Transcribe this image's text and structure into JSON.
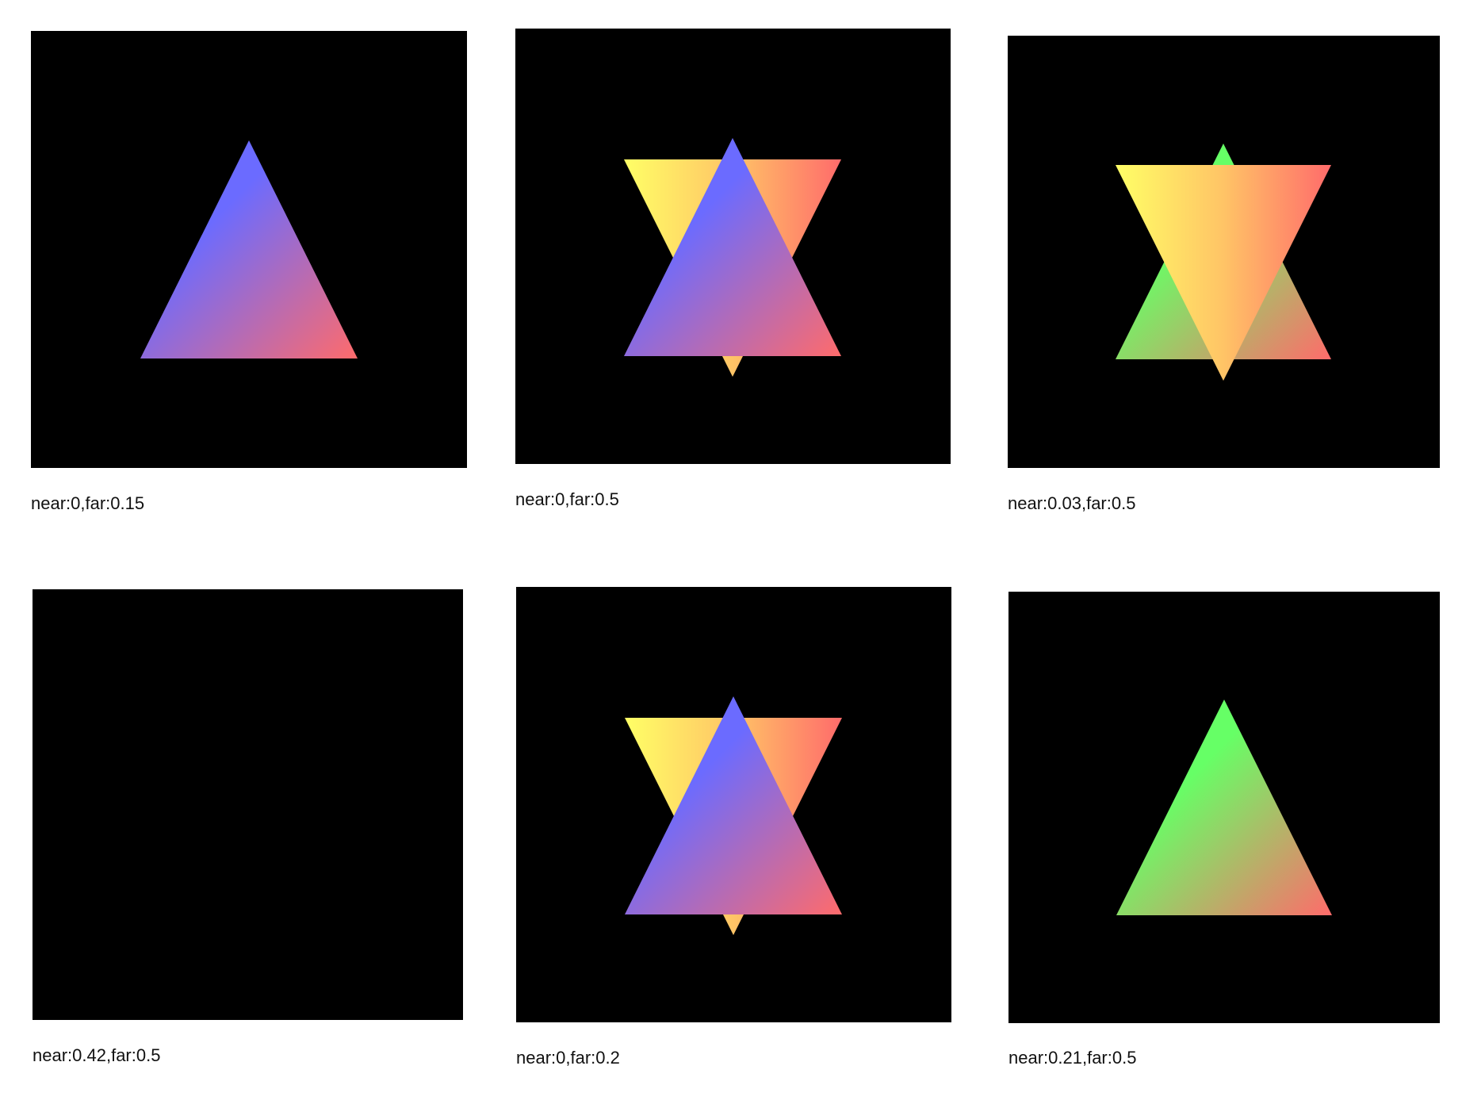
{
  "panels": [
    {
      "caption": "near:0,far:0.15",
      "shapes": [
        "blue-up"
      ]
    },
    {
      "caption": "near:0,far:0.5",
      "shapes": [
        "yellow-down",
        "blue-up"
      ]
    },
    {
      "caption": "near:0.03,far:0.5",
      "shapes": [
        "green-up",
        "yellow-down"
      ]
    },
    {
      "caption": "near:0.42,far:0.5",
      "shapes": []
    },
    {
      "caption": "near:0,far:0.2",
      "shapes": [
        "yellow-down",
        "blue-up"
      ]
    },
    {
      "caption": "near:0.21,far:0.5",
      "shapes": [
        "green-up"
      ]
    }
  ],
  "colors": {
    "background": "#000000",
    "blue": "#6b6bff",
    "red": "#ff6b6b",
    "yellow": "#ffff66",
    "orange": "#ff8a66",
    "green": "#66ff66"
  }
}
